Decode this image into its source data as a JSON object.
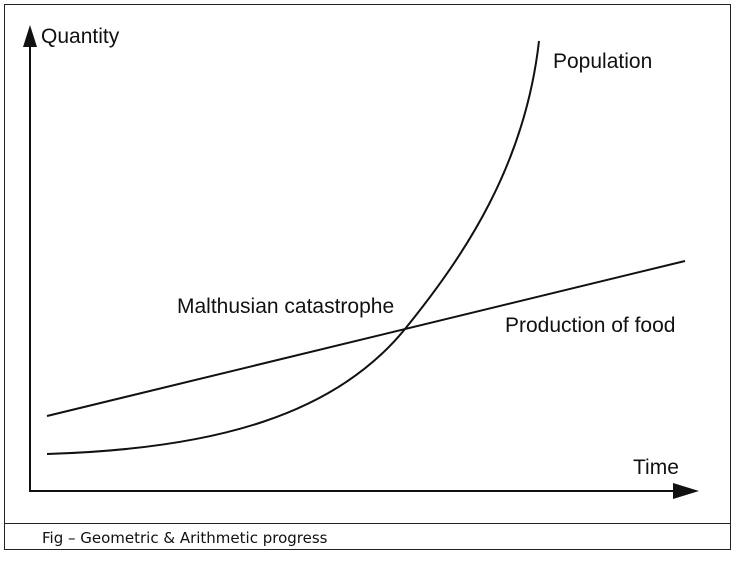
{
  "diagram": {
    "axes": {
      "y_label": "Quantity",
      "x_label": "Time"
    },
    "curves": [
      {
        "name": "population",
        "label": "Population",
        "shape": "exponential"
      },
      {
        "name": "food",
        "label": "Production of food",
        "shape": "linear"
      }
    ],
    "annotation": "Malthusian catastrophe",
    "caption": "Fig – Geometric & Arithmetic progress",
    "colors": {
      "line": "#111111",
      "border": "#222222",
      "background": "#ffffff"
    }
  }
}
